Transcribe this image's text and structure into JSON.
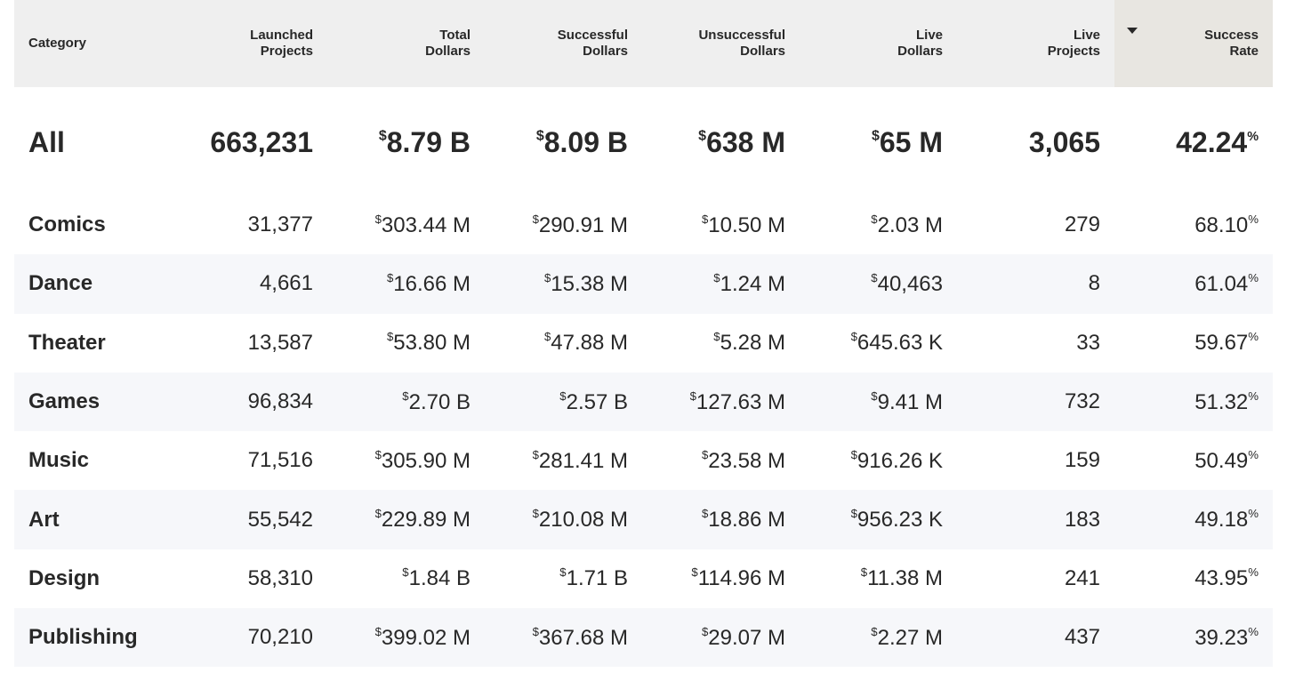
{
  "headers": [
    {
      "line1": "Category",
      "line2": ""
    },
    {
      "line1": "Launched",
      "line2": "Projects"
    },
    {
      "line1": "Total",
      "line2": "Dollars"
    },
    {
      "line1": "Successful",
      "line2": "Dollars"
    },
    {
      "line1": "Unsuccessful",
      "line2": "Dollars"
    },
    {
      "line1": "Live",
      "line2": "Dollars"
    },
    {
      "line1": "Live",
      "line2": "Projects"
    },
    {
      "line1": "Success",
      "line2": "Rate"
    }
  ],
  "sort": {
    "column": "Success Rate",
    "direction": "descending",
    "icon": "sort-descending-icon"
  },
  "currency_symbol": "$",
  "percent_symbol": "%",
  "all": {
    "category": "All",
    "launched": "663,231",
    "total": "8.79 B",
    "successful": "8.09 B",
    "unsuccessful": "638 M",
    "live_dollars": "65 M",
    "live_projects": "3,065",
    "success_rate": "42.24"
  },
  "rows": [
    {
      "category": "Comics",
      "launched": "31,377",
      "total": "303.44 M",
      "successful": "290.91 M",
      "unsuccessful": "10.50 M",
      "live_dollars": "2.03 M",
      "live_projects": "279",
      "success_rate": "68.10"
    },
    {
      "category": "Dance",
      "launched": "4,661",
      "total": "16.66 M",
      "successful": "15.38 M",
      "unsuccessful": "1.24 M",
      "live_dollars": "40,463",
      "live_projects": "8",
      "success_rate": "61.04"
    },
    {
      "category": "Theater",
      "launched": "13,587",
      "total": "53.80 M",
      "successful": "47.88 M",
      "unsuccessful": "5.28 M",
      "live_dollars": "645.63 K",
      "live_projects": "33",
      "success_rate": "59.67"
    },
    {
      "category": "Games",
      "launched": "96,834",
      "total": "2.70 B",
      "successful": "2.57 B",
      "unsuccessful": "127.63 M",
      "live_dollars": "9.41 M",
      "live_projects": "732",
      "success_rate": "51.32"
    },
    {
      "category": "Music",
      "launched": "71,516",
      "total": "305.90 M",
      "successful": "281.41 M",
      "unsuccessful": "23.58 M",
      "live_dollars": "916.26 K",
      "live_projects": "159",
      "success_rate": "50.49"
    },
    {
      "category": "Art",
      "launched": "55,542",
      "total": "229.89 M",
      "successful": "210.08 M",
      "unsuccessful": "18.86 M",
      "live_dollars": "956.23 K",
      "live_projects": "183",
      "success_rate": "49.18"
    },
    {
      "category": "Design",
      "launched": "58,310",
      "total": "1.84 B",
      "successful": "1.71 B",
      "unsuccessful": "114.96 M",
      "live_dollars": "11.38 M",
      "live_projects": "241",
      "success_rate": "43.95"
    },
    {
      "category": "Publishing",
      "launched": "70,210",
      "total": "399.02 M",
      "successful": "367.68 M",
      "unsuccessful": "29.07 M",
      "live_dollars": "2.27 M",
      "live_projects": "437",
      "success_rate": "39.23"
    }
  ],
  "colors": {
    "header_bg": "#efefef",
    "sorted_header_bg": "#e8e6e1",
    "stripe_bg": "#f6f7fa",
    "text": "#282828"
  }
}
